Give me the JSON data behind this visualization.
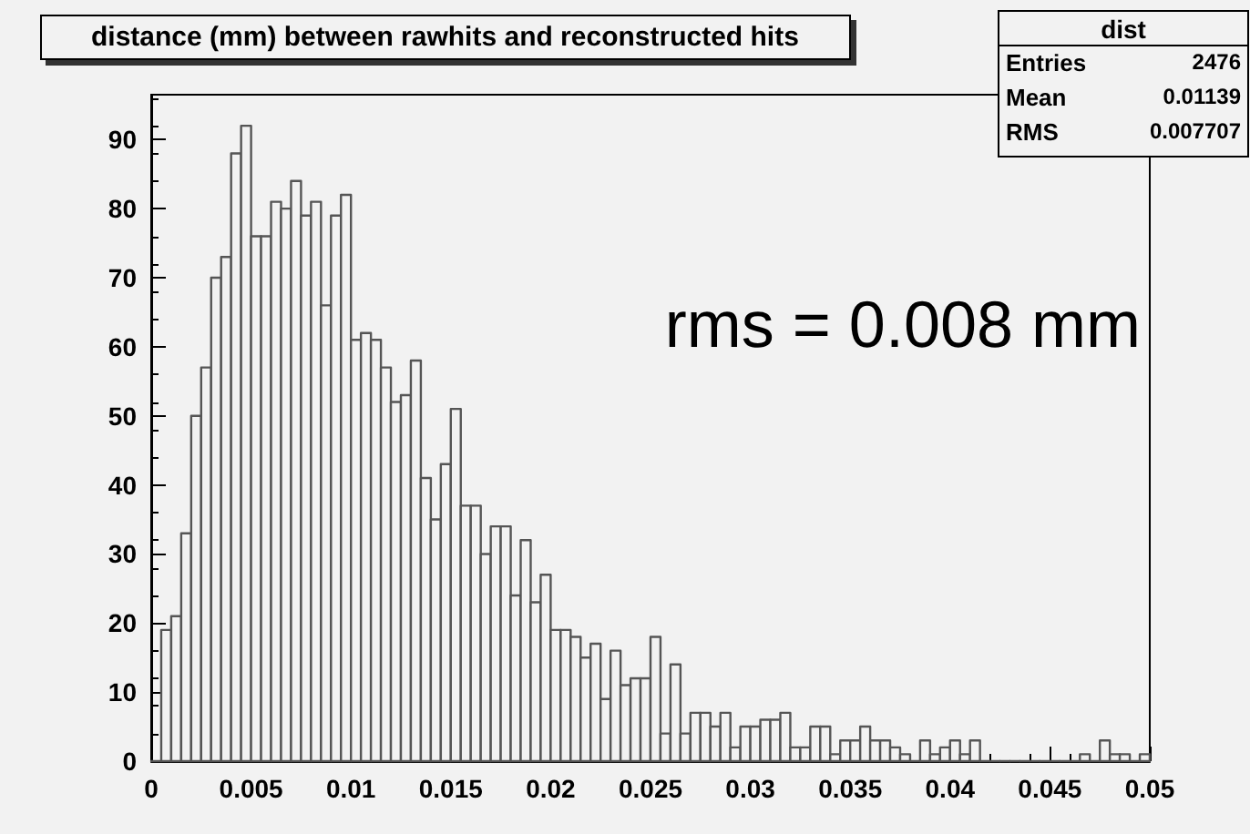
{
  "chart_data": {
    "type": "histogram",
    "title": "distance (mm) between rawhits and reconstructed hits",
    "bins": [
      0,
      0.0005,
      0.001,
      0.0015,
      0.002,
      0.0025,
      0.003,
      0.0035,
      0.004,
      0.0045,
      0.005,
      0.0055,
      0.006,
      0.0065,
      0.007,
      0.0075,
      0.008,
      0.0085,
      0.009,
      0.0095,
      0.01,
      0.0105,
      0.011,
      0.0115,
      0.012,
      0.0125,
      0.013,
      0.0135,
      0.014,
      0.0145,
      0.015,
      0.0155,
      0.016,
      0.0165,
      0.017,
      0.0175,
      0.018,
      0.0185,
      0.019,
      0.0195,
      0.02,
      0.0205,
      0.021,
      0.0215,
      0.022,
      0.0225,
      0.023,
      0.0235,
      0.024,
      0.0245,
      0.025,
      0.0255,
      0.026,
      0.0265,
      0.027,
      0.0275,
      0.028,
      0.0285,
      0.029,
      0.0295,
      0.03,
      0.0305,
      0.031,
      0.0315,
      0.032,
      0.0325,
      0.033,
      0.0335,
      0.034,
      0.0345,
      0.035,
      0.0355,
      0.036,
      0.0365,
      0.037,
      0.0375,
      0.038,
      0.0385,
      0.039,
      0.0395,
      0.04,
      0.0405,
      0.041,
      0.0415,
      0.042,
      0.0425,
      0.043,
      0.0435,
      0.044,
      0.0445,
      0.045,
      0.0455,
      0.046,
      0.0465,
      0.047,
      0.0475,
      0.048,
      0.0485,
      0.049,
      0.0495,
      0.05
    ],
    "values": [
      0,
      19,
      21,
      33,
      50,
      57,
      70,
      73,
      88,
      92,
      76,
      76,
      81,
      80,
      84,
      79,
      81,
      66,
      79,
      82,
      61,
      62,
      61,
      57,
      52,
      53,
      58,
      41,
      35,
      43,
      51,
      37,
      37,
      30,
      34,
      34,
      24,
      32,
      23,
      27,
      19,
      19,
      18,
      15,
      17,
      9,
      16,
      11,
      12,
      12,
      18,
      4,
      14,
      4,
      7,
      7,
      5,
      7,
      2,
      5,
      5,
      6,
      6,
      7,
      2,
      2,
      5,
      5,
      1,
      3,
      3,
      5,
      3,
      3,
      2,
      1,
      0,
      3,
      1,
      2,
      3,
      1,
      3,
      0,
      0,
      0,
      0,
      0,
      0,
      0,
      0,
      0,
      0,
      1,
      0,
      3,
      1,
      1,
      0,
      1
    ],
    "color": "#555555",
    "xlim": [
      0,
      0.05
    ],
    "xticks": [
      0,
      0.005,
      0.01,
      0.015,
      0.02,
      0.025,
      0.03,
      0.035,
      0.04,
      0.045,
      0.05
    ],
    "ylim": [
      0,
      96.5
    ],
    "yticks": [
      0,
      10,
      20,
      30,
      40,
      50,
      60,
      70,
      80,
      90
    ],
    "annotations": [
      "dist",
      "Entries 2476",
      "Mean 0.01139",
      "RMS 0.007707",
      "rms = 0.008 mm"
    ]
  }
}
